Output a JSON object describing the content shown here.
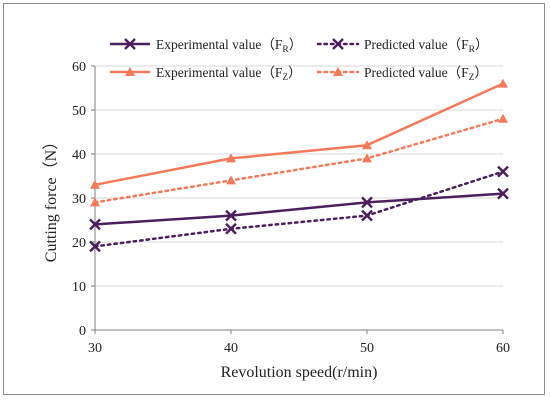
{
  "chart_data": {
    "type": "line",
    "title": "",
    "xlabel": "Revolution speed(r/min)",
    "ylabel": "Cutting force（N）",
    "x": [
      30,
      40,
      50,
      60
    ],
    "xlim": [
      30,
      60
    ],
    "ylim": [
      0,
      60
    ],
    "yticks": [
      0,
      10,
      20,
      30,
      40,
      50,
      60
    ],
    "xticks": [
      30,
      40,
      50,
      60
    ],
    "grid": "horizontal",
    "legend_position": "top",
    "series": [
      {
        "name": "Experimental value（F",
        "sub": "R",
        "close": "）",
        "values": [
          24,
          26,
          29,
          31
        ],
        "color": "#4b1f5e",
        "marker": "x",
        "dash": "solid"
      },
      {
        "name": "Predicted value（F",
        "sub": "R",
        "close": "）",
        "values": [
          19,
          23,
          26,
          36
        ],
        "color": "#4b1f5e",
        "marker": "x",
        "dash": "dotted"
      },
      {
        "name": "Experimental value（F",
        "sub": "Z",
        "close": "）",
        "values": [
          33,
          39,
          42,
          56
        ],
        "color": "#f47a5a",
        "marker": "triangle",
        "dash": "solid"
      },
      {
        "name": "Predicted value（F",
        "sub": "Z",
        "close": "）",
        "values": [
          29,
          34,
          39,
          48
        ],
        "color": "#f47a5a",
        "marker": "triangle",
        "dash": "dotted"
      }
    ]
  }
}
